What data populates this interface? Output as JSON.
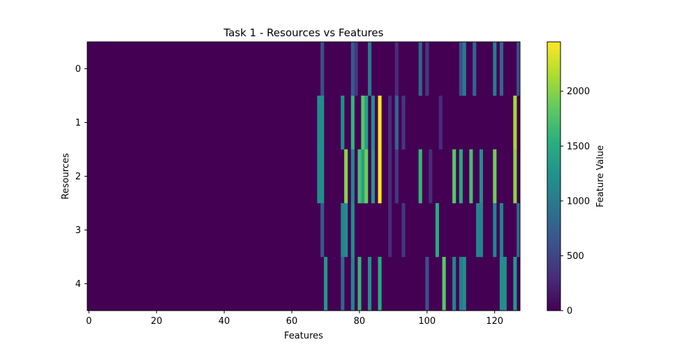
{
  "chart_data": {
    "type": "heatmap",
    "title": "Task 1 - Resources vs Features",
    "xlabel": "Features",
    "ylabel": "Resources",
    "colorbar_label": "Feature Value",
    "colormap": "viridis",
    "xlim": [
      -0.5,
      127.5
    ],
    "ylim": [
      -0.5,
      4.5
    ],
    "vlim": [
      0,
      2450
    ],
    "x_ticks": [
      0,
      20,
      40,
      60,
      80,
      100,
      120
    ],
    "x_tick_labels": [
      "0",
      "20",
      "40",
      "60",
      "80",
      "100",
      "120"
    ],
    "y_ticks": [
      0,
      1,
      2,
      3,
      4
    ],
    "y_tick_labels": [
      "0",
      "1",
      "2",
      "3",
      "4"
    ],
    "colorbar_ticks": [
      0,
      500,
      1000,
      1500,
      2000
    ],
    "colorbar_tick_labels": [
      "0",
      "500",
      "1000",
      "1500",
      "2000"
    ],
    "grid": false,
    "rows": 5,
    "cols": 128,
    "background_value": 0,
    "nonzero_cells": {
      "0": [
        [
          69,
          600
        ],
        [
          78,
          700
        ],
        [
          79,
          400
        ],
        [
          83,
          1000
        ],
        [
          91,
          300
        ],
        [
          98,
          800
        ],
        [
          100,
          400
        ],
        [
          110,
          600
        ],
        [
          111,
          1000
        ],
        [
          114,
          800
        ],
        [
          120,
          1000
        ],
        [
          122,
          800
        ],
        [
          127,
          600
        ]
      ],
      "1": [
        [
          68,
          1200
        ],
        [
          69,
          1200
        ],
        [
          75,
          1200
        ],
        [
          78,
          1600
        ],
        [
          81,
          1800
        ],
        [
          82,
          1400
        ],
        [
          84,
          1200
        ],
        [
          86,
          2450
        ],
        [
          89,
          300
        ],
        [
          91,
          800
        ],
        [
          93,
          400
        ],
        [
          104,
          300
        ],
        [
          126,
          2100
        ]
      ],
      "2": [
        [
          68,
          1200
        ],
        [
          69,
          1200
        ],
        [
          76,
          2000
        ],
        [
          78,
          1100
        ],
        [
          80,
          1700
        ],
        [
          81,
          1400
        ],
        [
          82,
          1900
        ],
        [
          84,
          1300
        ],
        [
          86,
          2450
        ],
        [
          89,
          300
        ],
        [
          91,
          400
        ],
        [
          98,
          1600
        ],
        [
          101,
          300
        ],
        [
          108,
          1800
        ],
        [
          110,
          1500
        ],
        [
          113,
          1700
        ],
        [
          116,
          1200
        ],
        [
          120,
          1900
        ],
        [
          126,
          2000
        ]
      ],
      "3": [
        [
          69,
          700
        ],
        [
          75,
          1100
        ],
        [
          76,
          1200
        ],
        [
          78,
          1200
        ],
        [
          89,
          300
        ],
        [
          93,
          400
        ],
        [
          103,
          1500
        ],
        [
          115,
          1100
        ],
        [
          116,
          1100
        ],
        [
          120,
          1100
        ],
        [
          122,
          1100
        ],
        [
          127,
          800
        ]
      ],
      "4": [
        [
          70,
          1300
        ],
        [
          75,
          800
        ],
        [
          78,
          1100
        ],
        [
          80,
          1600
        ],
        [
          83,
          1200
        ],
        [
          86,
          1500
        ],
        [
          100,
          600
        ],
        [
          105,
          1800
        ],
        [
          108,
          1100
        ],
        [
          110,
          1000
        ],
        [
          111,
          1200
        ],
        [
          122,
          1200
        ],
        [
          123,
          1200
        ],
        [
          126,
          1300
        ]
      ]
    }
  }
}
